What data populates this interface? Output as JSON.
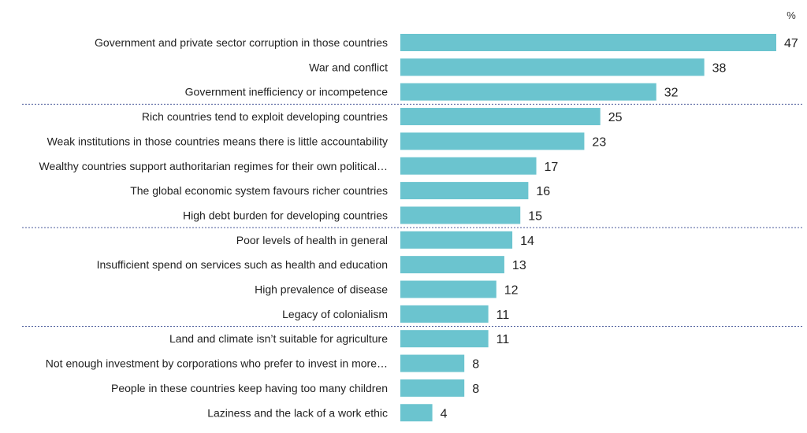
{
  "chart_data": {
    "type": "bar",
    "orientation": "horizontal",
    "unit_label": "%",
    "categories": [
      "Government and private sector corruption in those countries",
      "War and conflict",
      "Government inefficiency or incompetence",
      "Rich countries tend to exploit developing countries",
      "Weak institutions in those countries means there is little accountability",
      "Wealthy countries support authoritarian regimes for their own political…",
      "The global economic system favours richer countries",
      "High debt burden for developing countries",
      "Poor levels of health in general",
      "Insufficient spend on services such as health and education",
      "High prevalence of disease",
      "Legacy of colonialism",
      "Land and climate isn’t suitable for agriculture",
      "Not enough investment by corporations who prefer to invest in more…",
      "People in these countries keep having too many children",
      "Laziness and the lack of a work ethic"
    ],
    "values": [
      47,
      38,
      32,
      25,
      23,
      17,
      16,
      15,
      14,
      13,
      12,
      11,
      11,
      8,
      8,
      4
    ],
    "group_separators_after_index": [
      2,
      7,
      11
    ],
    "xlim": [
      0,
      47
    ],
    "bar_color": "#6bc4cf",
    "separator_color": "#4a5a9a",
    "grid": false,
    "legend": false
  }
}
